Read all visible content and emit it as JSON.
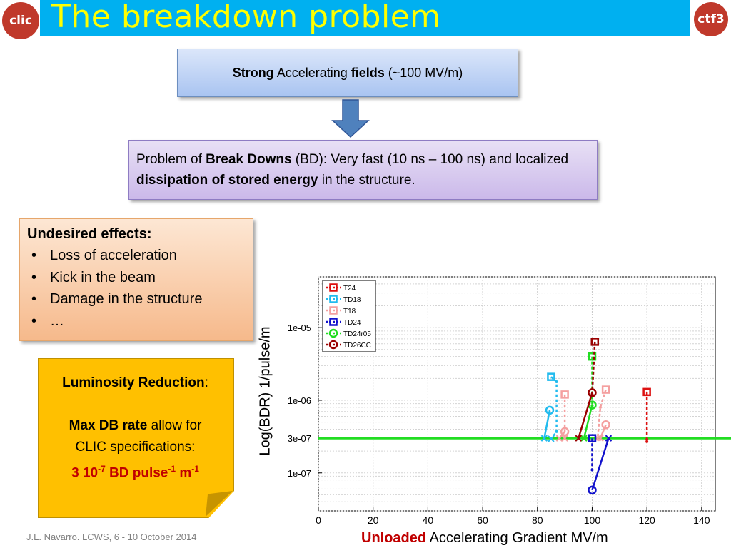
{
  "header": {
    "title": "The breakdown problem",
    "logo_left": "clic",
    "logo_right": "ctf3"
  },
  "box_fields": {
    "bold1": "Strong",
    "text1": " Accelerating ",
    "bold2": "fields",
    "text2": " (~100 MV/m)"
  },
  "box_problem": {
    "text1": "Problem of ",
    "bold1": "Break Downs",
    "text2": " (BD): Very fast (10 ns – 100 ns) and localized ",
    "bold2": "dissipation of stored energy",
    "text3": " in the structure."
  },
  "effects": {
    "heading": "Undesired effects:",
    "items": [
      "Loss of acceleration",
      "Kick in the beam",
      "Damage in the structure",
      "…"
    ]
  },
  "note": {
    "line1_bold": "Luminosity Reduction",
    "line1_tail": ":",
    "line2_bold": "Max DB rate",
    "line2_tail": " allow for",
    "line3": "CLIC specifications:",
    "line4_a": "3 10",
    "line4_sup1": "-7",
    "line4_b": " BD pulse",
    "line4_sup2": "-1",
    "line4_c": " m",
    "line4_sup3": "-1"
  },
  "footer": "J.L. Navarro. LCWS, 6 - 10 October 2014",
  "colors": {
    "title_bar": "#00b0f0",
    "title_text": "#ffff00",
    "accent_red": "#c00000",
    "spec_line": "#22dd22"
  },
  "chart_data": {
    "type": "line",
    "x_axis": {
      "label_red": "Unloaded",
      "label_rest": " Accelerating Gradient MV/m",
      "range": [
        0,
        145
      ],
      "ticks": [
        0,
        20,
        40,
        60,
        80,
        100,
        120,
        140
      ]
    },
    "y_axis": {
      "label": "Log(BDR) 1/pulse/m",
      "scale": "log",
      "range": [
        3e-08,
        5e-05
      ],
      "ticks": [
        1e-07,
        3e-07,
        1e-06,
        1e-05
      ],
      "tick_labels": [
        "1e-07",
        "3e-07",
        "1e-06",
        "1e-05"
      ]
    },
    "grid": true,
    "legend_position": "top-left",
    "reference_line": {
      "y": 3e-07,
      "color": "#22dd22"
    },
    "series": [
      {
        "name": "T24",
        "color": "#dd1111",
        "marker": "square",
        "points": [
          [
            120,
            1.3e-06
          ],
          [
            120,
            2.9e-07
          ],
          [
            120,
            2.7e-07
          ]
        ]
      },
      {
        "name": "TD18",
        "color": "#22bbee",
        "marker": "square",
        "points": [
          [
            85,
            2.1e-06
          ],
          [
            87,
            1.8e-06
          ],
          [
            87,
            3.7e-07
          ],
          [
            85,
            2.95e-07
          ]
        ]
      },
      {
        "name": "TD18",
        "color": "#22bbee",
        "marker": "circle",
        "points": [
          [
            84.5,
            7.3e-07
          ],
          [
            82.5,
            3e-07
          ]
        ]
      },
      {
        "name": "T18",
        "color": "#f4a0a0",
        "marker": "square",
        "points": [
          [
            90,
            1.2e-06
          ],
          [
            90,
            3e-07
          ]
        ]
      },
      {
        "name": "T18",
        "color": "#f4a0a0",
        "marker": "square",
        "points": [
          [
            105,
            1.4e-06
          ],
          [
            103,
            8e-07
          ],
          [
            102,
            3e-07
          ]
        ]
      },
      {
        "name": "T18",
        "color": "#f4a0a0",
        "marker": "circle",
        "points": [
          [
            90,
            3.7e-07
          ],
          [
            88,
            3e-07
          ]
        ]
      },
      {
        "name": "T18",
        "color": "#f4a0a0",
        "marker": "circle",
        "points": [
          [
            105,
            4.6e-07
          ],
          [
            103,
            3e-07
          ]
        ]
      },
      {
        "name": "TD24",
        "color": "#1111cc",
        "marker": "square",
        "points": [
          [
            100,
            3e-07
          ],
          [
            100,
            1.1e-07
          ]
        ]
      },
      {
        "name": "TD24",
        "color": "#1111cc",
        "marker": "circle",
        "points": [
          [
            100,
            5.8e-08
          ],
          [
            106,
            3e-07
          ]
        ]
      },
      {
        "name": "TD24r05",
        "color": "#22dd22",
        "marker": "square",
        "points": [
          [
            100,
            4e-06
          ],
          [
            100,
            8.4e-07
          ]
        ]
      },
      {
        "name": "TD24r05",
        "color": "#22dd22",
        "marker": "circle",
        "points": [
          [
            100,
            8.6e-07
          ],
          [
            97,
            3e-07
          ]
        ]
      },
      {
        "name": "TD26CC",
        "color": "#990000",
        "marker": "square",
        "points": [
          [
            101,
            6.4e-06
          ],
          [
            100,
            1.2e-06
          ]
        ]
      },
      {
        "name": "TD26CC",
        "color": "#990000",
        "marker": "circle",
        "points": [
          [
            100,
            1.27e-06
          ],
          [
            95,
            3e-07
          ]
        ]
      }
    ],
    "legend": [
      {
        "name": "T24",
        "color": "#dd1111",
        "marker": "square"
      },
      {
        "name": "TD18",
        "color": "#22bbee",
        "marker": "square"
      },
      {
        "name": "T18",
        "color": "#f4a0a0",
        "marker": "square"
      },
      {
        "name": "TD24",
        "color": "#1111cc",
        "marker": "square"
      },
      {
        "name": "TD24r05",
        "color": "#22dd22",
        "marker": "circle"
      },
      {
        "name": "TD26CC",
        "color": "#990000",
        "marker": "circle"
      }
    ]
  }
}
